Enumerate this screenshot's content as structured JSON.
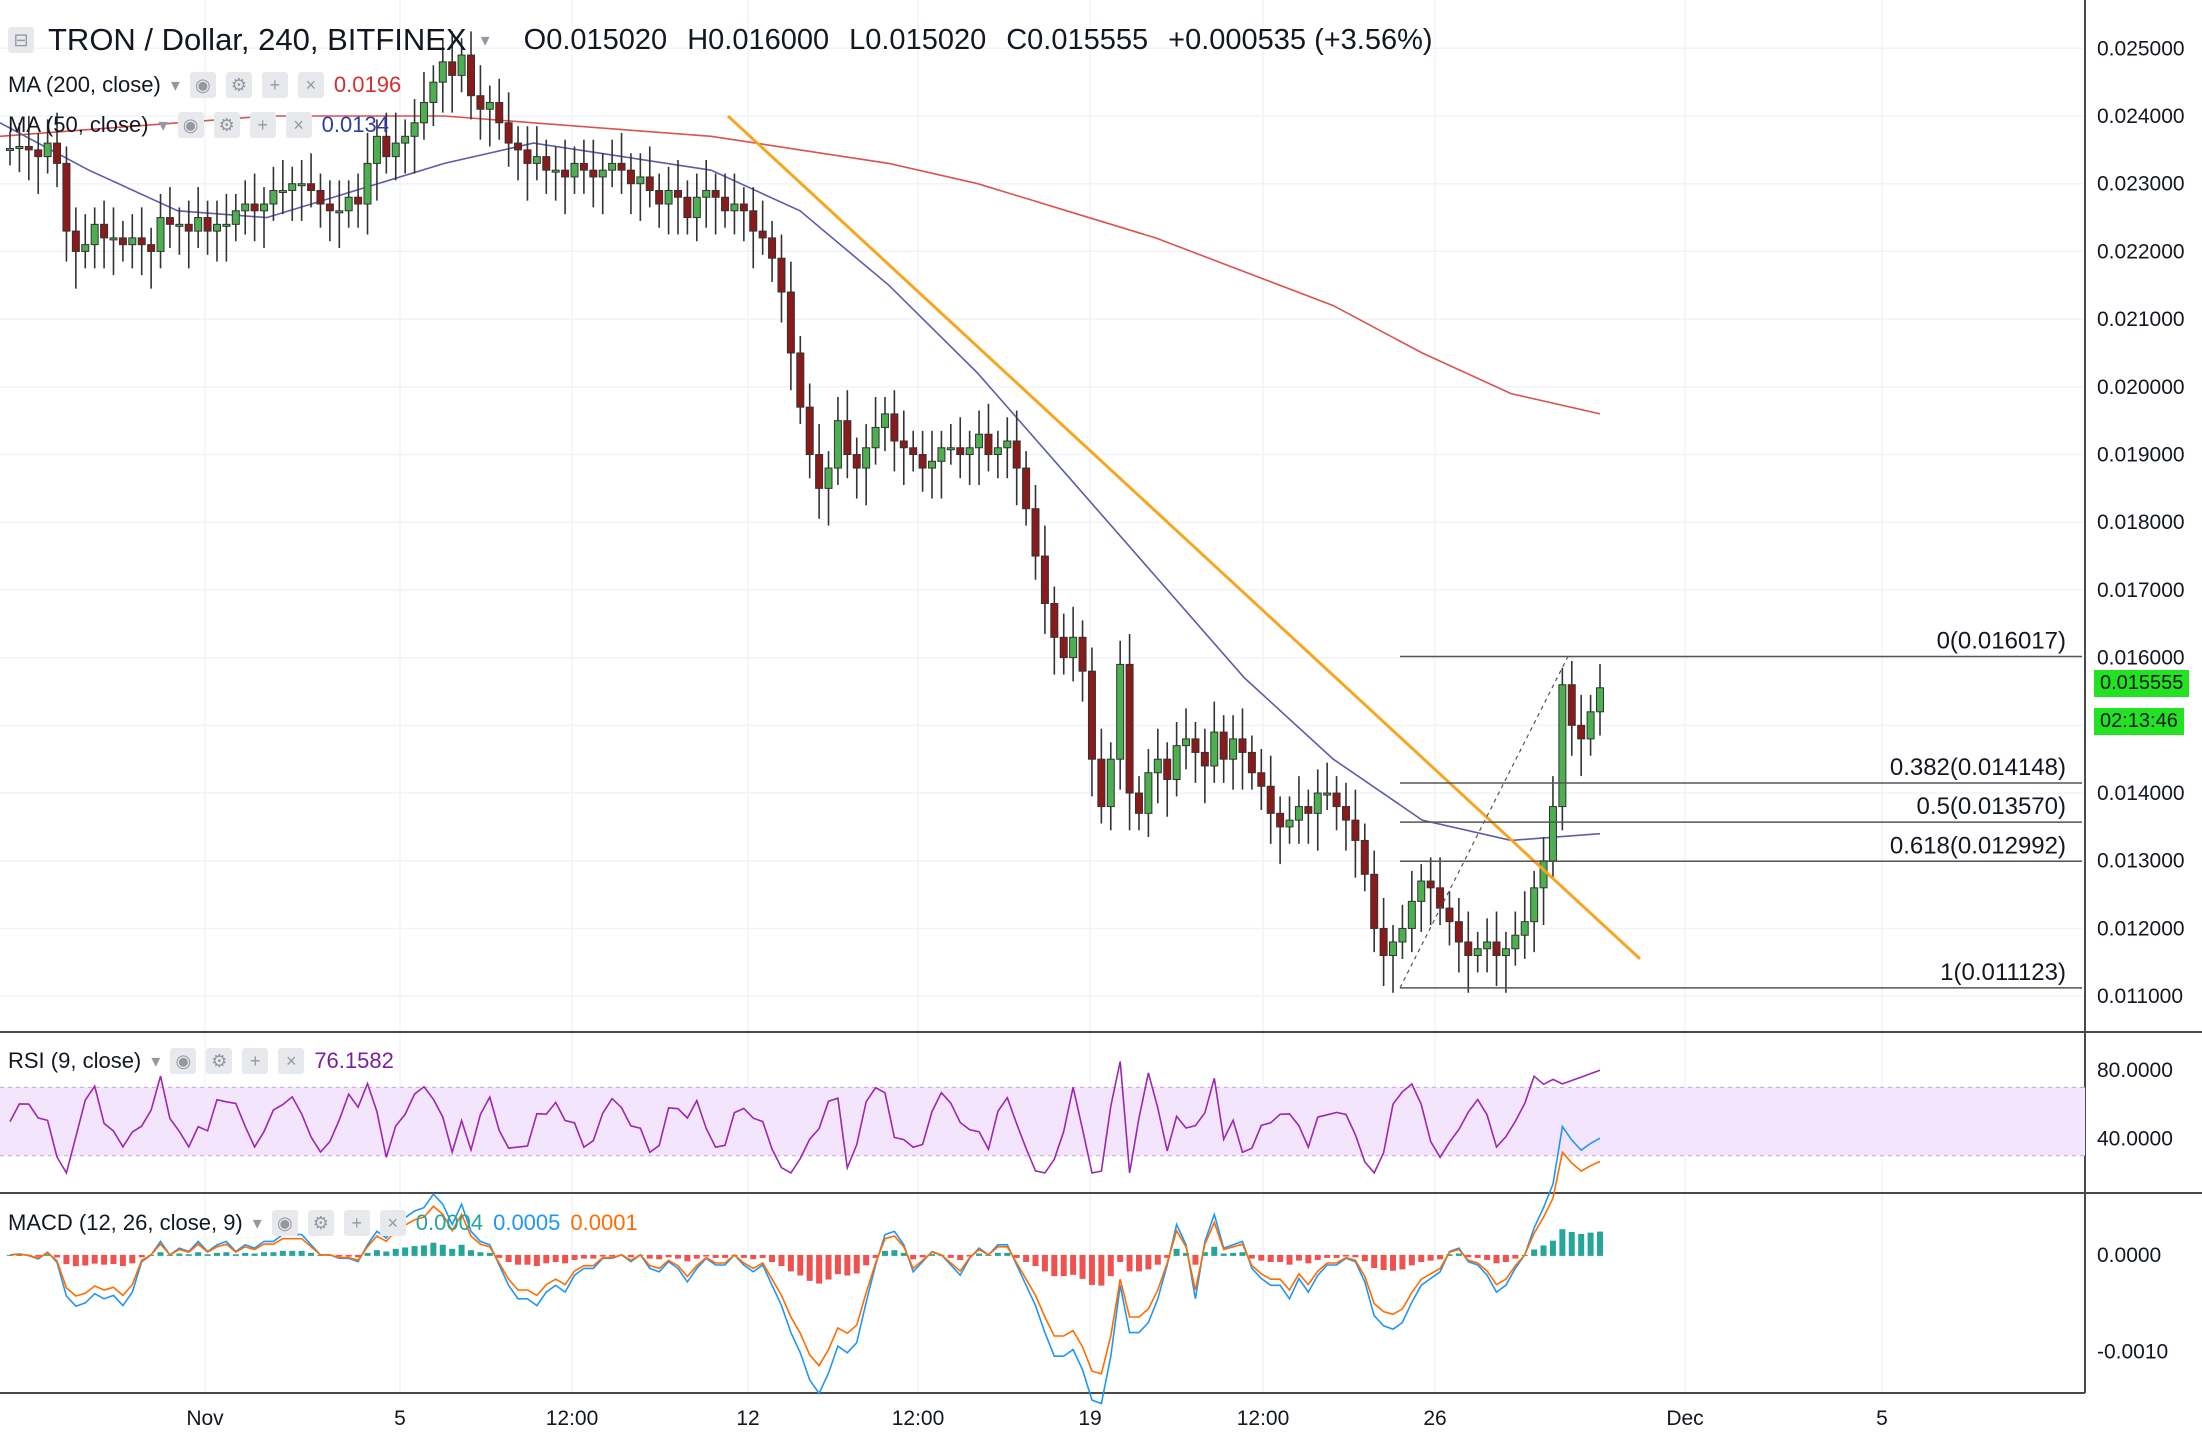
{
  "header": {
    "symbol": "TRON / Dollar, 240, BITFINEX",
    "open_label": "O",
    "open": "0.015020",
    "high_label": "H",
    "high": "0.016000",
    "low_label": "L",
    "low": "0.015020",
    "close_label": "C",
    "close": "0.015555",
    "change": "+0.000535 (+3.56%)"
  },
  "indicators": {
    "ma200": {
      "label": "MA (200, close)",
      "value": "0.0196",
      "color": "#d32f2f"
    },
    "ma50": {
      "label": "MA (50, close)",
      "value": "0.0134",
      "color": "#303f9f"
    },
    "rsi": {
      "label": "RSI (9, close)",
      "value": "76.1582",
      "color": "#7b1fa2"
    },
    "macd": {
      "label": "MACD (12, 26, close, 9)",
      "v1": "0.0004",
      "v1_color": "#26a69a",
      "v2": "0.0005",
      "v2_color": "#2196f3",
      "v3": "0.0001",
      "v3_color": "#ff6d00"
    }
  },
  "price_axis": [
    "0.025000",
    "0.024000",
    "0.023000",
    "0.022000",
    "0.021000",
    "0.020000",
    "0.019000",
    "0.018000",
    "0.017000",
    "0.016000",
    "0.015555",
    "0.014000",
    "0.013000",
    "0.012000",
    "0.011000"
  ],
  "current_price": "0.015555",
  "countdown": "02:13:46",
  "rsi_axis": [
    "80.0000",
    "40.0000"
  ],
  "macd_axis": [
    "0.0000",
    "-0.0010"
  ],
  "time_axis": [
    "Nov",
    "5",
    "12:00",
    "12",
    "12:00",
    "19",
    "12:00",
    "26",
    "Dec",
    "5"
  ],
  "fib_labels": [
    "0(0.016017)",
    "0.382(0.014148)",
    "0.5(0.013570)",
    "0.618(0.012992)",
    "1(0.011123)"
  ],
  "chart_data": {
    "type": "candlestick",
    "symbol": "TRON / Dollar",
    "interval": "240",
    "ylim": [
      0.0105,
      0.0253
    ],
    "fib_levels": [
      {
        "ratio": "0",
        "price": 0.016017
      },
      {
        "ratio": "0.382",
        "price": 0.014148
      },
      {
        "ratio": "0.5",
        "price": 0.01357
      },
      {
        "ratio": "0.618",
        "price": 0.012992
      },
      {
        "ratio": "1",
        "price": 0.011123
      }
    ],
    "close_path": [
      0.02352,
      0.02355,
      0.0235,
      0.0234,
      0.0236,
      0.0233,
      0.0223,
      0.022,
      0.0221,
      0.0224,
      0.0222,
      0.0222,
      0.0221,
      0.0222,
      0.0221,
      0.022,
      0.0225,
      0.0224,
      0.0224,
      0.0223,
      0.0225,
      0.0223,
      0.0224,
      0.0224,
      0.0226,
      0.0227,
      0.0226,
      0.0227,
      0.0229,
      0.0229,
      0.023,
      0.023,
      0.0229,
      0.0227,
      0.0226,
      0.0226,
      0.0228,
      0.0227,
      0.0233,
      0.0237,
      0.0234,
      0.0236,
      0.0237,
      0.0239,
      0.0242,
      0.0245,
      0.0248,
      0.0246,
      0.0249,
      0.0243,
      0.0241,
      0.0242,
      0.0239,
      0.0236,
      0.0235,
      0.0233,
      0.0234,
      0.0232,
      0.0232,
      0.0231,
      0.0233,
      0.0232,
      0.0231,
      0.0232,
      0.0233,
      0.0232,
      0.023,
      0.0231,
      0.0229,
      0.0227,
      0.0229,
      0.0228,
      0.0225,
      0.0228,
      0.0229,
      0.0228,
      0.0226,
      0.0227,
      0.0226,
      0.0223,
      0.0222,
      0.0219,
      0.0214,
      0.0205,
      0.0197,
      0.019,
      0.0185,
      0.0188,
      0.0195,
      0.019,
      0.0188,
      0.0191,
      0.0194,
      0.0196,
      0.0192,
      0.0191,
      0.019,
      0.0188,
      0.0189,
      0.0191,
      0.0191,
      0.019,
      0.0191,
      0.0193,
      0.019,
      0.0191,
      0.0192,
      0.0188,
      0.0182,
      0.0175,
      0.0168,
      0.0163,
      0.016,
      0.0163,
      0.0158,
      0.0145,
      0.0138,
      0.0145,
      0.0159,
      0.014,
      0.0137,
      0.0143,
      0.0145,
      0.0142,
      0.0147,
      0.0148,
      0.0146,
      0.0144,
      0.0149,
      0.0145,
      0.0148,
      0.0146,
      0.0143,
      0.0141,
      0.0137,
      0.0135,
      0.0136,
      0.0138,
      0.0137,
      0.014,
      0.014,
      0.0138,
      0.0136,
      0.0133,
      0.0128,
      0.012,
      0.0116,
      0.0118,
      0.012,
      0.0124,
      0.0127,
      0.0126,
      0.0123,
      0.0121,
      0.0118,
      0.0116,
      0.0117,
      0.0118,
      0.0116,
      0.0117,
      0.0119,
      0.0121,
      0.0126,
      0.013,
      0.0138,
      0.0156,
      0.015,
      0.0148,
      0.0152,
      0.015555
    ],
    "ma200_path": [
      0.0237,
      0.0238,
      0.0239,
      0.024,
      0.024,
      0.024,
      0.0239,
      0.0238,
      0.0237,
      0.0235,
      0.0233,
      0.023,
      0.0226,
      0.0222,
      0.0217,
      0.0212,
      0.0205,
      0.0199,
      0.0196
    ],
    "ma50_path": [
      0.0239,
      0.0232,
      0.0226,
      0.0225,
      0.0229,
      0.0233,
      0.0236,
      0.0234,
      0.0232,
      0.0226,
      0.0215,
      0.0202,
      0.0187,
      0.0172,
      0.0157,
      0.0145,
      0.0136,
      0.0133,
      0.0134
    ],
    "rsi": {
      "ylim": [
        10,
        100
      ],
      "band": [
        70,
        30
      ],
      "value": 76.1582
    },
    "macd": {
      "ylim": [
        -0.0014,
        0.0006
      ],
      "macd": 0.0005,
      "signal": 0.0001,
      "hist": 0.0004
    }
  }
}
